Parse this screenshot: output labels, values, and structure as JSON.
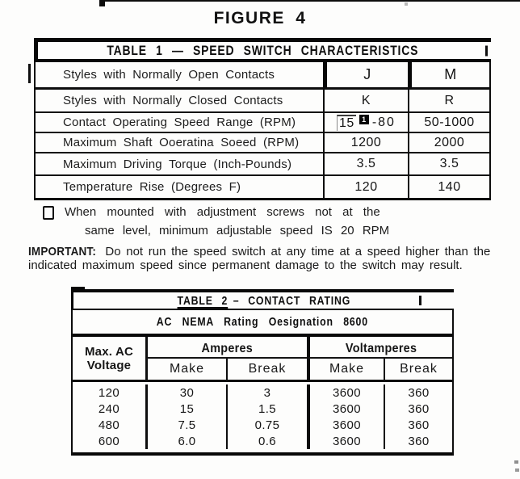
{
  "page": {
    "figure_title": "FIGURE 4"
  },
  "table1": {
    "header": "TABLE 1 — SPEED SWITCH CHARACTERISTICS",
    "header_right_mark": "",
    "rows": [
      {
        "label": "Styles with Normally Open Contacts",
        "j": "J",
        "m": "M"
      },
      {
        "label": "Styles with Normally Closed Contacts",
        "j": "K",
        "m": "R"
      },
      {
        "label": "Contact Operating Speed Range (RPM)",
        "j_pre": "15",
        "j_marker": "1",
        "j_post": "-80",
        "m": "50-1000"
      },
      {
        "label": "Maximum Shaft Ooeratina Soeed (RPM)",
        "j": "1200",
        "m": "2000"
      },
      {
        "label": "Maximum Driving Torque (Inch-Pounds)",
        "j": "3.5",
        "m": "3.5"
      },
      {
        "label": "Temperature Rise (Degrees F)",
        "j": "120",
        "m": "140"
      }
    ]
  },
  "footnote": {
    "line1": "When mounted with adjustment screws not at the",
    "line2": "same level, minimum adjustable speed IS 20 RPM"
  },
  "important": {
    "label": "IMPORTANT:",
    "line1": "Do not run the speed switch at any time at a speed higher than the",
    "line2": "indicated maximum speed since permanent damage to the switch may result."
  },
  "table2": {
    "title_underlined": "TABLE 2",
    "title_rest": "– CONTACT RATING",
    "subheader": "AC NEMA Rating Oesignation 8600",
    "voltage_line1": "Max. AC",
    "voltage_line2": "Voltage",
    "group_amperes": "Amperes",
    "group_voltamperes": "Voltamperes",
    "col_make": "Make",
    "col_break": "Break",
    "rows": [
      {
        "voltage": "120",
        "amp_make": "30",
        "amp_break": "3",
        "va_make": "3600",
        "va_break": "360"
      },
      {
        "voltage": "240",
        "amp_make": "15",
        "amp_break": "1.5",
        "va_make": "3600",
        "va_break": "360"
      },
      {
        "voltage": "480",
        "amp_make": "7.5",
        "amp_break": "0.75",
        "va_make": "3600",
        "va_break": "360"
      },
      {
        "voltage": "600",
        "amp_make": "6.0",
        "amp_break": "0.6",
        "va_make": "3600",
        "va_break": "360"
      }
    ]
  }
}
